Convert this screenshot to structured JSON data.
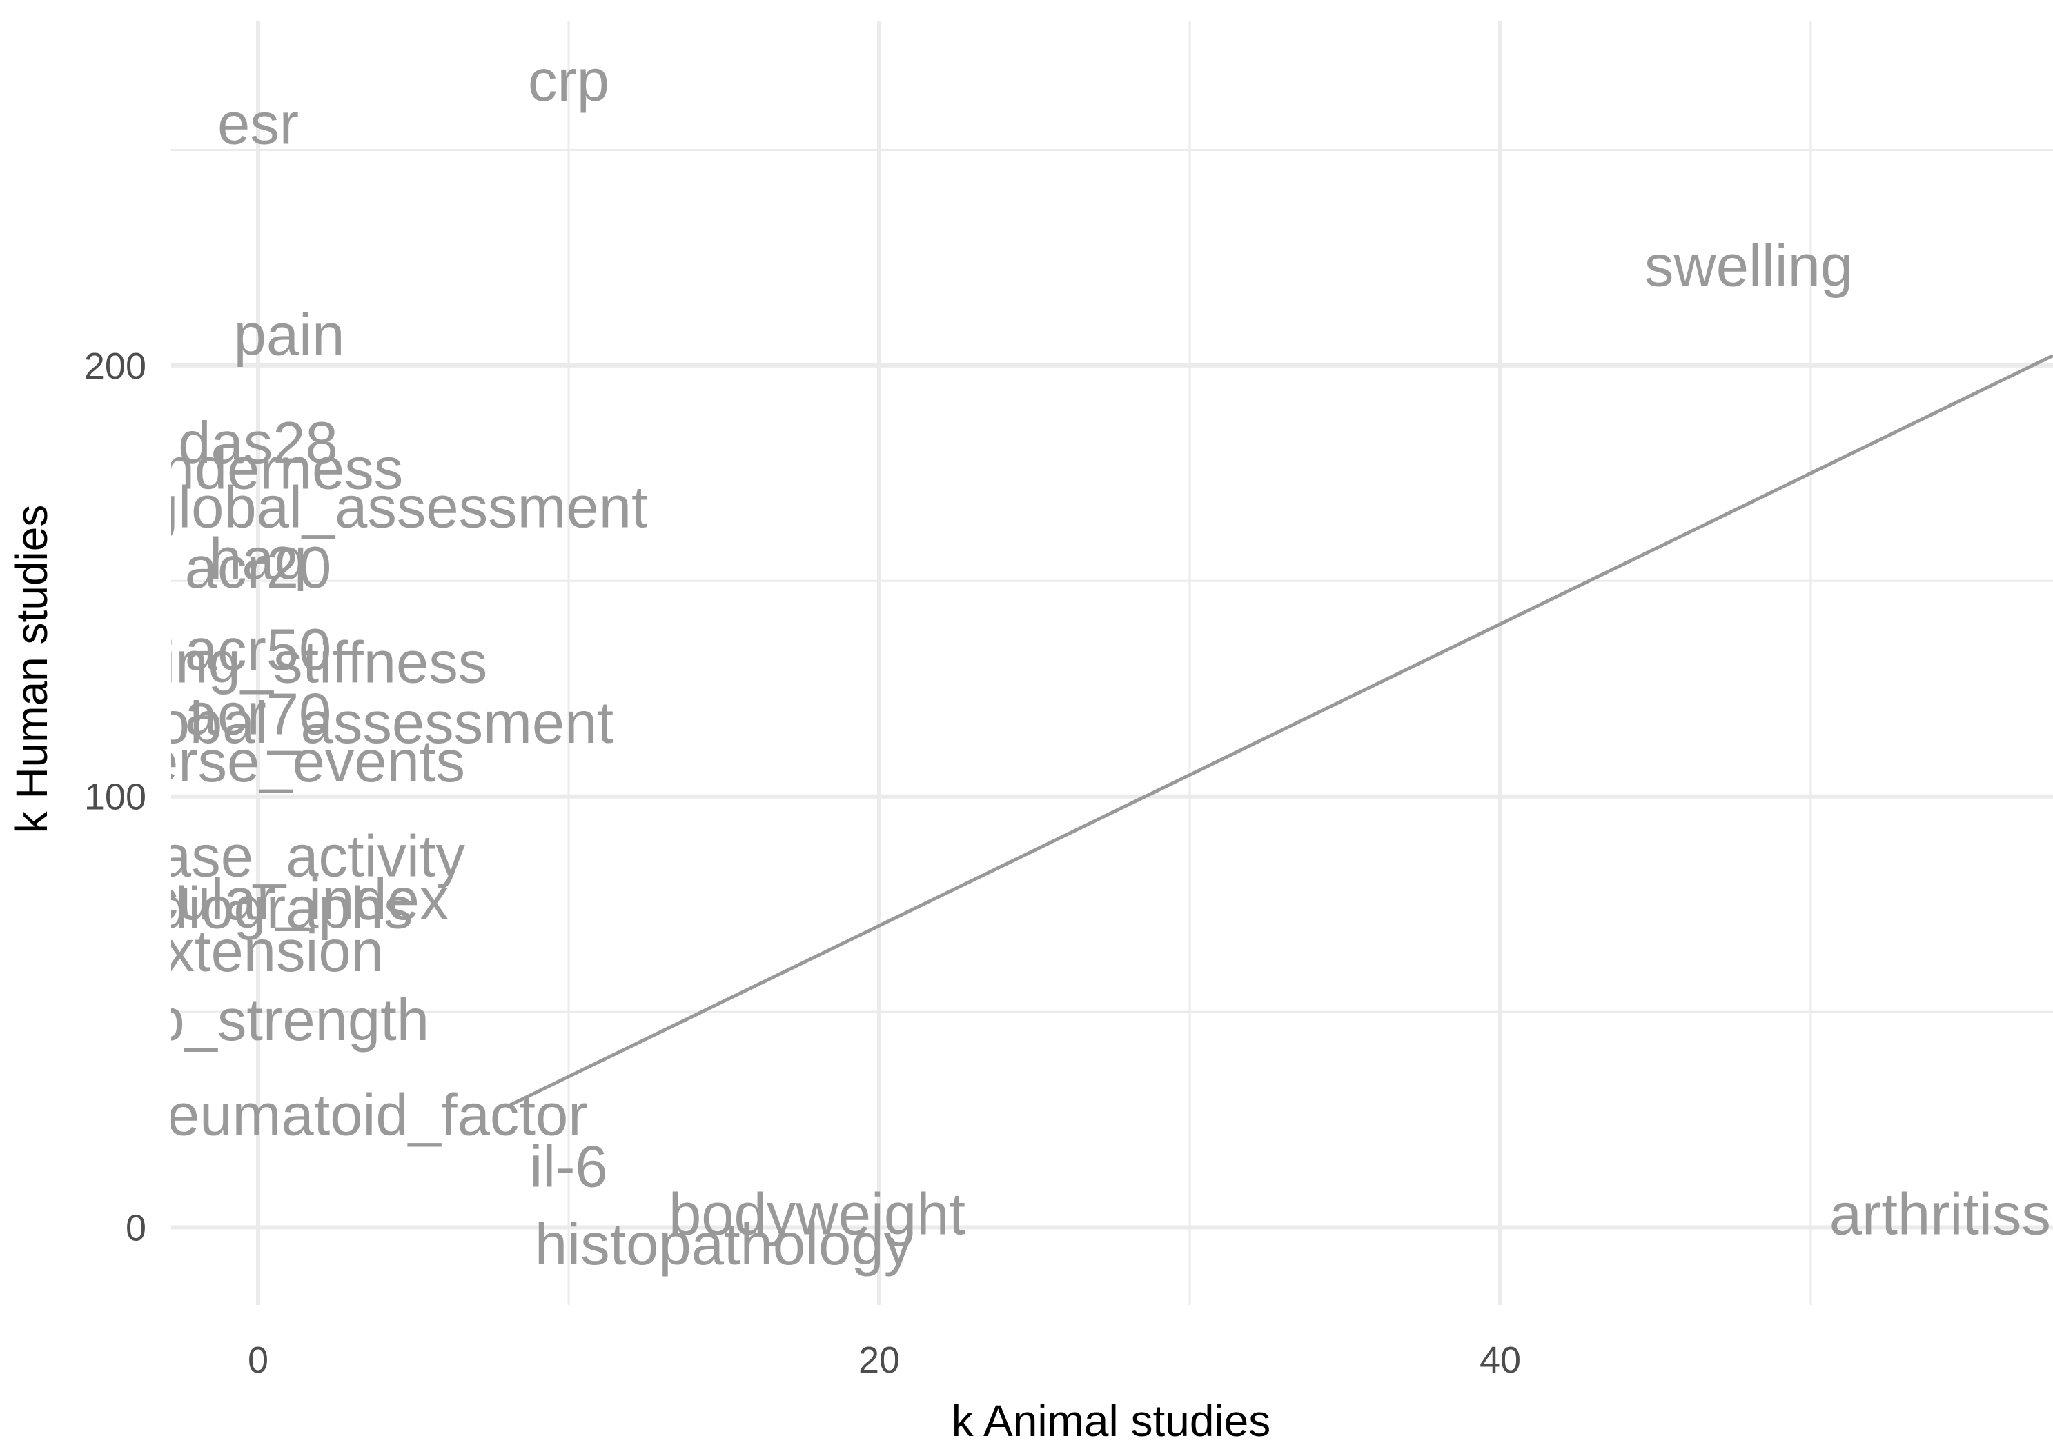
{
  "chart_data": {
    "type": "scatter",
    "title": "",
    "xlabel": "k Animal studies",
    "ylabel": "k Human studies",
    "xlim": [
      -2.8,
      57.8
    ],
    "ylim": [
      -18,
      280
    ],
    "x_ticks": [
      0,
      20,
      40
    ],
    "y_ticks": [
      0,
      100,
      200
    ],
    "grid": true,
    "legend": "none",
    "reference_line": {
      "slope": 3.5,
      "intercept": 0
    },
    "text_color": "#999999",
    "grid_color": "#ebebeb",
    "labels_clipped_at_plot_panel": true,
    "points": [
      {
        "label": "crp",
        "x": 10,
        "y": 266
      },
      {
        "label": "esr",
        "x": 0,
        "y": 256
      },
      {
        "label": "swelling",
        "x": 48,
        "y": 223
      },
      {
        "label": "pain",
        "x": 1,
        "y": 207
      },
      {
        "label": "das28",
        "x": 0,
        "y": 182
      },
      {
        "label": "tenderness",
        "x": 0,
        "y": 176
      },
      {
        "label": "physician_global_assessment",
        "x": 0,
        "y": 167
      },
      {
        "label": "haq",
        "x": 0,
        "y": 155
      },
      {
        "label": "acr20",
        "x": 0,
        "y": 153
      },
      {
        "label": "acr50",
        "x": 0,
        "y": 134
      },
      {
        "label": "morning_stiffness",
        "x": 0,
        "y": 131
      },
      {
        "label": "acr70",
        "x": 0,
        "y": 119
      },
      {
        "label": "patient_global_assessment",
        "x": 0,
        "y": 117
      },
      {
        "label": "adverse_events",
        "x": 0,
        "y": 108
      },
      {
        "label": "disease_activity",
        "x": 0,
        "y": 86
      },
      {
        "label": "articular_index",
        "x": 0,
        "y": 76
      },
      {
        "label": "radiographs",
        "x": 0,
        "y": 74
      },
      {
        "label": "extension",
        "x": 0,
        "y": 64
      },
      {
        "label": "grip_strength",
        "x": 0,
        "y": 48
      },
      {
        "label": "rheumatoid_factor",
        "x": 3,
        "y": 26
      },
      {
        "label": "il-6",
        "x": 10,
        "y": 14
      },
      {
        "label": "bodyweight",
        "x": 18,
        "y": 3
      },
      {
        "label": "histopathology",
        "x": 15,
        "y": -4
      },
      {
        "label": "arthritisscore",
        "x": 56,
        "y": 3
      }
    ]
  }
}
